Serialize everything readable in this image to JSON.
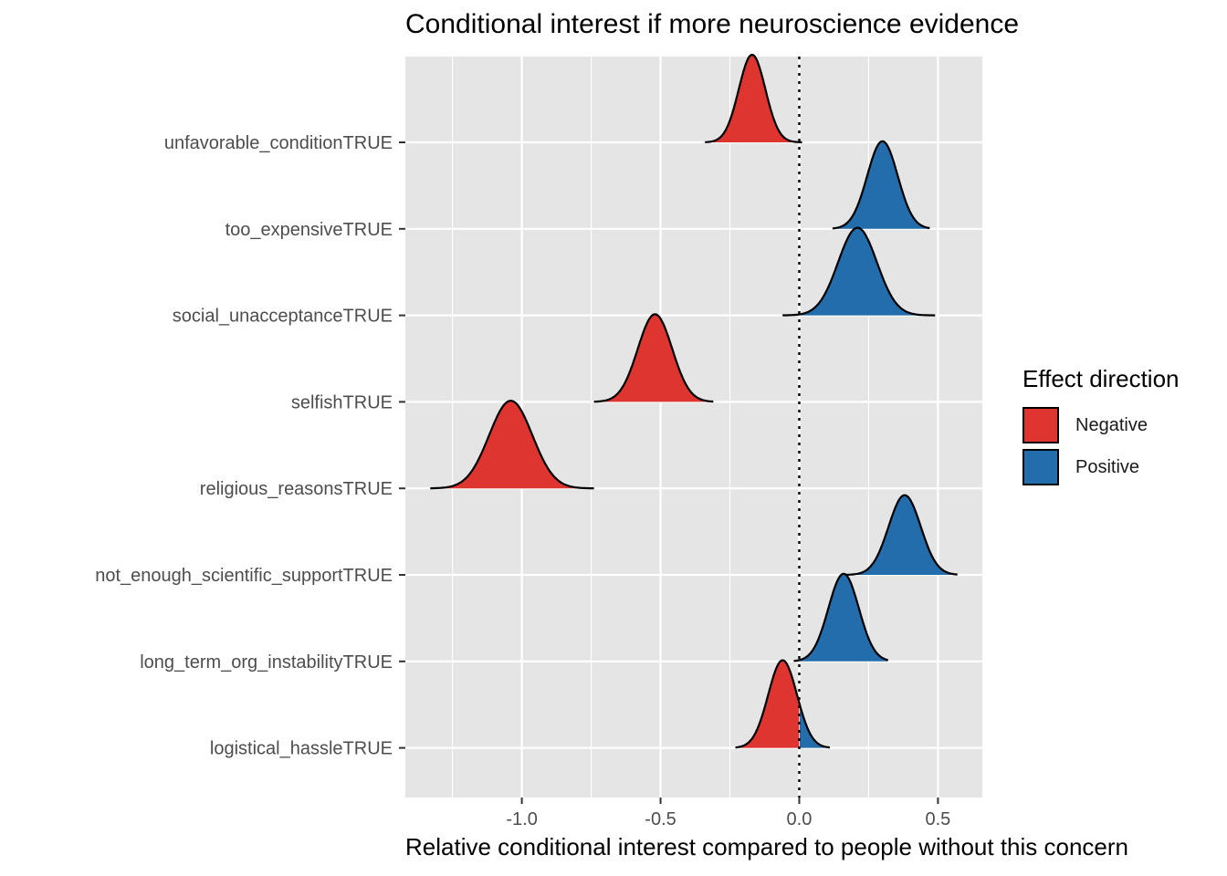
{
  "colors": {
    "panel_background": "#e5e5e5",
    "grid_line": "#ffffff",
    "negative": "#df3530",
    "positive": "#236dac",
    "outline": "#000000",
    "axis_text": "#4d4d4d"
  },
  "chart_data": {
    "type": "density_ridgeline",
    "title": "Conditional interest if more neuroscience evidence",
    "xlabel": "Relative conditional interest compared to people without this concern",
    "ylabel": "",
    "xlim": [
      -1.42,
      0.66
    ],
    "x_ticks": [
      -1.0,
      -0.5,
      0.0,
      0.5
    ],
    "x_tick_labels": [
      "-1.0",
      "-0.5",
      "0.0",
      "0.5"
    ],
    "reference_line": {
      "x": 0.0,
      "style": "dotted"
    },
    "grid": true,
    "legend": {
      "title": "Effect direction",
      "position": "right",
      "entries": [
        {
          "label": "Negative",
          "color": "#df3530"
        },
        {
          "label": "Positive",
          "color": "#236dac"
        }
      ]
    },
    "series": [
      {
        "name": "unfavorable_conditionTRUE",
        "mean": -0.17,
        "sd": 0.048,
        "min": -0.34,
        "max": 0.01,
        "peak_height": 1.0
      },
      {
        "name": "too_expensiveTRUE",
        "mean": 0.3,
        "sd": 0.055,
        "min": 0.12,
        "max": 0.47,
        "peak_height": 1.0
      },
      {
        "name": "social_unacceptanceTRUE",
        "mean": 0.21,
        "sd": 0.07,
        "min": -0.06,
        "max": 0.49,
        "peak_height": 1.0
      },
      {
        "name": "selfishTRUE",
        "mean": -0.52,
        "sd": 0.062,
        "min": -0.74,
        "max": -0.31,
        "peak_height": 1.0
      },
      {
        "name": "religious_reasonsTRUE",
        "mean": -1.04,
        "sd": 0.078,
        "min": -1.33,
        "max": -0.74,
        "peak_height": 1.0
      },
      {
        "name": "not_enough_scientific_supportTRUE",
        "mean": 0.38,
        "sd": 0.058,
        "min": 0.15,
        "max": 0.57,
        "peak_height": 0.91
      },
      {
        "name": "long_term_org_instabilityTRUE",
        "mean": 0.16,
        "sd": 0.055,
        "min": -0.02,
        "max": 0.32,
        "peak_height": 1.0
      },
      {
        "name": "logistical_hassleTRUE",
        "mean": -0.06,
        "sd": 0.052,
        "min": -0.23,
        "max": 0.11,
        "peak_height": 1.0
      }
    ]
  }
}
